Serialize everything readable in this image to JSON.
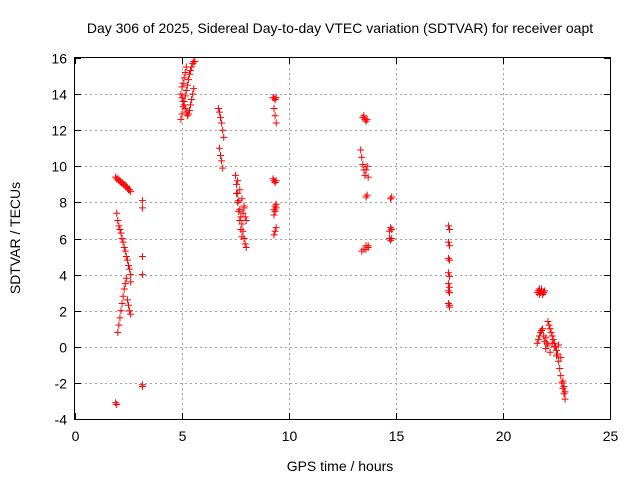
{
  "chart_data": {
    "type": "scatter",
    "title": "Day 306 of 2025, Sidereal Day-to-day VTEC variation (SDTVAR) for receiver oapt",
    "xlabel": "GPS time / hours",
    "ylabel": "SDTVAR / TECUs",
    "xlim": [
      0,
      25
    ],
    "ylim": [
      -4,
      16
    ],
    "xticks": [
      0,
      5,
      10,
      15,
      20,
      25
    ],
    "yticks": [
      -4,
      -2,
      0,
      2,
      4,
      6,
      8,
      10,
      12,
      14,
      16
    ],
    "grid": true,
    "marker": "+",
    "color": "#ff0000",
    "series": [
      {
        "name": "SDTVAR",
        "x": [
          1.9,
          1.95,
          2.0,
          2.05,
          2.1,
          2.15,
          2.2,
          2.25,
          2.3,
          2.35,
          2.4,
          2.45,
          2.5,
          2.55,
          2.6,
          1.95,
          2.0,
          2.05,
          2.1,
          2.15,
          2.2,
          2.25,
          2.3,
          2.35,
          2.4,
          2.45,
          2.5,
          2.55,
          2.6,
          2.6,
          2.0,
          2.05,
          2.1,
          2.15,
          2.2,
          2.25,
          2.3,
          2.35,
          2.4,
          2.45,
          2.5,
          2.55,
          2.6,
          1.9,
          1.95,
          3.15,
          3.15,
          3.15,
          3.15,
          3.15,
          3.15,
          4.95,
          5.0,
          5.05,
          5.1,
          5.15,
          5.2,
          5.25,
          5.3,
          5.35,
          5.4,
          5.45,
          5.5,
          5.55,
          5.6,
          4.95,
          5.0,
          5.05,
          5.1,
          5.15,
          5.2,
          5.25,
          5.3,
          5.35,
          5.4,
          5.45,
          5.5,
          5.55,
          5.0,
          5.05,
          5.1,
          5.15,
          5.2,
          6.7,
          6.75,
          6.8,
          6.85,
          6.9,
          6.95,
          6.75,
          6.8,
          6.85,
          6.9,
          7.5,
          7.55,
          7.6,
          7.65,
          7.7,
          7.75,
          7.8,
          7.85,
          7.9,
          7.95,
          8.0,
          7.55,
          7.6,
          7.65,
          7.7,
          7.75,
          7.8,
          7.85,
          7.9,
          7.95,
          7.6,
          7.7,
          7.8,
          7.9,
          8.0,
          9.25,
          9.3,
          9.35,
          9.4,
          9.3,
          9.35,
          9.4,
          9.25,
          9.3,
          9.35,
          9.4,
          9.3,
          9.35,
          9.4,
          9.3,
          9.35,
          9.4,
          9.3,
          9.35,
          9.4,
          13.35,
          13.4,
          13.45,
          13.5,
          13.55,
          13.6,
          13.65,
          13.7,
          13.45,
          13.5,
          13.55,
          13.6,
          13.65,
          13.6,
          13.65,
          13.4,
          13.5,
          13.6,
          13.7,
          13.6,
          13.7,
          14.75,
          14.8,
          14.7,
          14.75,
          14.8,
          14.7,
          14.75,
          14.8,
          17.45,
          17.5,
          17.45,
          17.5,
          17.45,
          17.5,
          17.45,
          17.5,
          17.45,
          17.5,
          17.45,
          17.5,
          17.45,
          17.5,
          17.5,
          21.6,
          21.65,
          21.7,
          21.75,
          21.8,
          21.85,
          21.9,
          21.95,
          21.7,
          21.8,
          21.9,
          21.6,
          21.65,
          21.7,
          21.75,
          21.8,
          21.85,
          21.9,
          21.95,
          22.0,
          22.05,
          22.1,
          22.15,
          22.2,
          22.25,
          22.3,
          22.35,
          22.4,
          22.45,
          22.5,
          22.55,
          22.6,
          22.65,
          22.7,
          22.75,
          22.8,
          22.85,
          22.9,
          22.0,
          22.1,
          22.2,
          22.3,
          22.4,
          22.5,
          22.6,
          22.7,
          22.8,
          22.85,
          22.9
        ],
        "y": [
          9.4,
          9.3,
          9.3,
          9.2,
          9.2,
          9.1,
          9.1,
          9.0,
          9.0,
          8.9,
          8.9,
          8.8,
          8.7,
          8.7,
          8.6,
          7.4,
          7.0,
          6.7,
          6.5,
          6.3,
          6.0,
          5.8,
          5.5,
          5.3,
          5.0,
          4.8,
          4.5,
          4.3,
          4.0,
          3.6,
          0.8,
          1.2,
          1.6,
          2.0,
          2.4,
          2.8,
          3.2,
          3.5,
          3.8,
          2.6,
          2.3,
          2.0,
          1.8,
          -3.1,
          -3.2,
          8.1,
          7.7,
          5.0,
          4.0,
          -2.1,
          -2.2,
          12.6,
          12.9,
          13.3,
          13.6,
          13.9,
          14.2,
          14.5,
          14.8,
          15.1,
          15.3,
          15.5,
          15.7,
          15.8,
          15.8,
          14.0,
          13.8,
          13.6,
          13.4,
          13.2,
          13.0,
          12.8,
          12.9,
          13.1,
          13.4,
          13.7,
          14.0,
          14.3,
          14.4,
          14.6,
          14.9,
          15.2,
          15.5,
          13.2,
          13.0,
          12.7,
          12.4,
          12.0,
          11.6,
          11.0,
          10.6,
          10.3,
          9.9,
          9.5,
          9.0,
          8.5,
          8.1,
          7.6,
          7.2,
          6.8,
          6.4,
          6.0,
          5.7,
          5.5,
          8.5,
          8.0,
          7.5,
          7.0,
          6.5,
          6.1,
          7.4,
          7.8,
          7.2,
          9.2,
          8.7,
          8.2,
          7.7,
          7.0,
          13.8,
          13.8,
          13.7,
          13.8,
          13.2,
          12.8,
          12.4,
          9.3,
          9.2,
          9.1,
          9.2,
          7.3,
          7.5,
          7.7,
          7.6,
          7.8,
          7.9,
          6.2,
          6.4,
          6.6,
          10.9,
          10.5,
          10.1,
          9.8,
          9.5,
          9.8,
          10.0,
          9.4,
          12.7,
          12.8,
          12.6,
          12.5,
          12.6,
          8.3,
          8.4,
          5.3,
          5.4,
          5.6,
          5.5,
          5.4,
          5.6,
          8.2,
          8.3,
          6.4,
          6.6,
          6.5,
          6.0,
          5.9,
          6.0,
          6.7,
          6.5,
          5.8,
          5.6,
          4.9,
          4.8,
          4.1,
          3.9,
          3.5,
          3.3,
          3.1,
          3.0,
          2.4,
          2.3,
          2.2,
          3.0,
          3.1,
          3.2,
          3.0,
          3.1,
          2.9,
          3.0,
          3.1,
          2.9,
          3.2,
          3.0,
          0.2,
          0.4,
          0.6,
          0.8,
          0.9,
          1.0,
          0.6,
          0.3,
          0.5,
          0.2,
          1.4,
          1.2,
          1.0,
          0.8,
          0.6,
          0.4,
          0.2,
          0.0,
          -0.2,
          -0.4,
          -0.8,
          -1.2,
          -1.6,
          -2.0,
          -2.3,
          -2.6,
          -2.9,
          -0.1,
          0.1,
          -0.3,
          0.2,
          0.0,
          -0.5,
          0.1,
          -0.6,
          -1.9,
          -2.2,
          -2.5
        ]
      }
    ]
  }
}
